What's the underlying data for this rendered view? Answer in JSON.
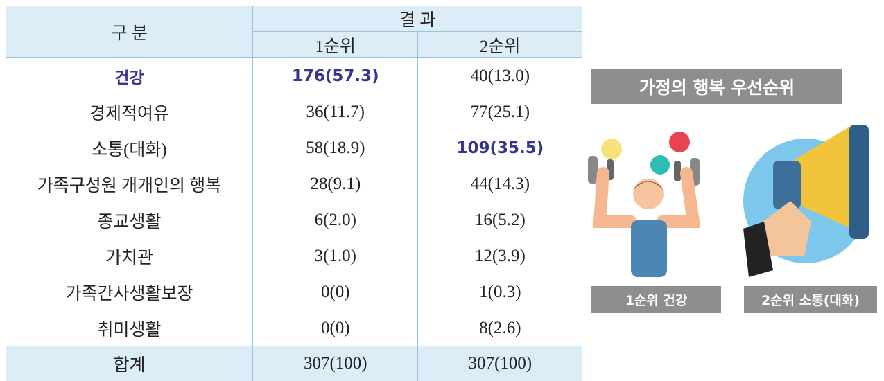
{
  "table": {
    "header": {
      "category": "구 분",
      "result": "결 과",
      "rank1": "1순위",
      "rank2": "2순위"
    },
    "rows": [
      [
        "건강",
        "176(57.3)",
        "40(13.0)"
      ],
      [
        "경제적여유",
        "36(11.7)",
        "77(25.1)"
      ],
      [
        "소통(대화)",
        "58(18.9)",
        "109(35.5)"
      ],
      [
        "가족구성원 개개인의 행복",
        "28(9.1)",
        "44(14.3)"
      ],
      [
        "종교생활",
        "6(2.0)",
        "16(5.2)"
      ],
      [
        "가치관",
        "3(1.0)",
        "12(3.9)"
      ],
      [
        "가족간사생활보장",
        "0(0)",
        "1(0.3)"
      ],
      [
        "취미생활",
        "0(0)",
        "8(2.6)"
      ]
    ],
    "total": [
      "합계",
      "307(100)",
      "307(100)"
    ]
  },
  "panel": {
    "title": "가정의 행복 우선순위",
    "caption1": "1순위 건강",
    "caption2": "2순위 소통(대화)"
  }
}
